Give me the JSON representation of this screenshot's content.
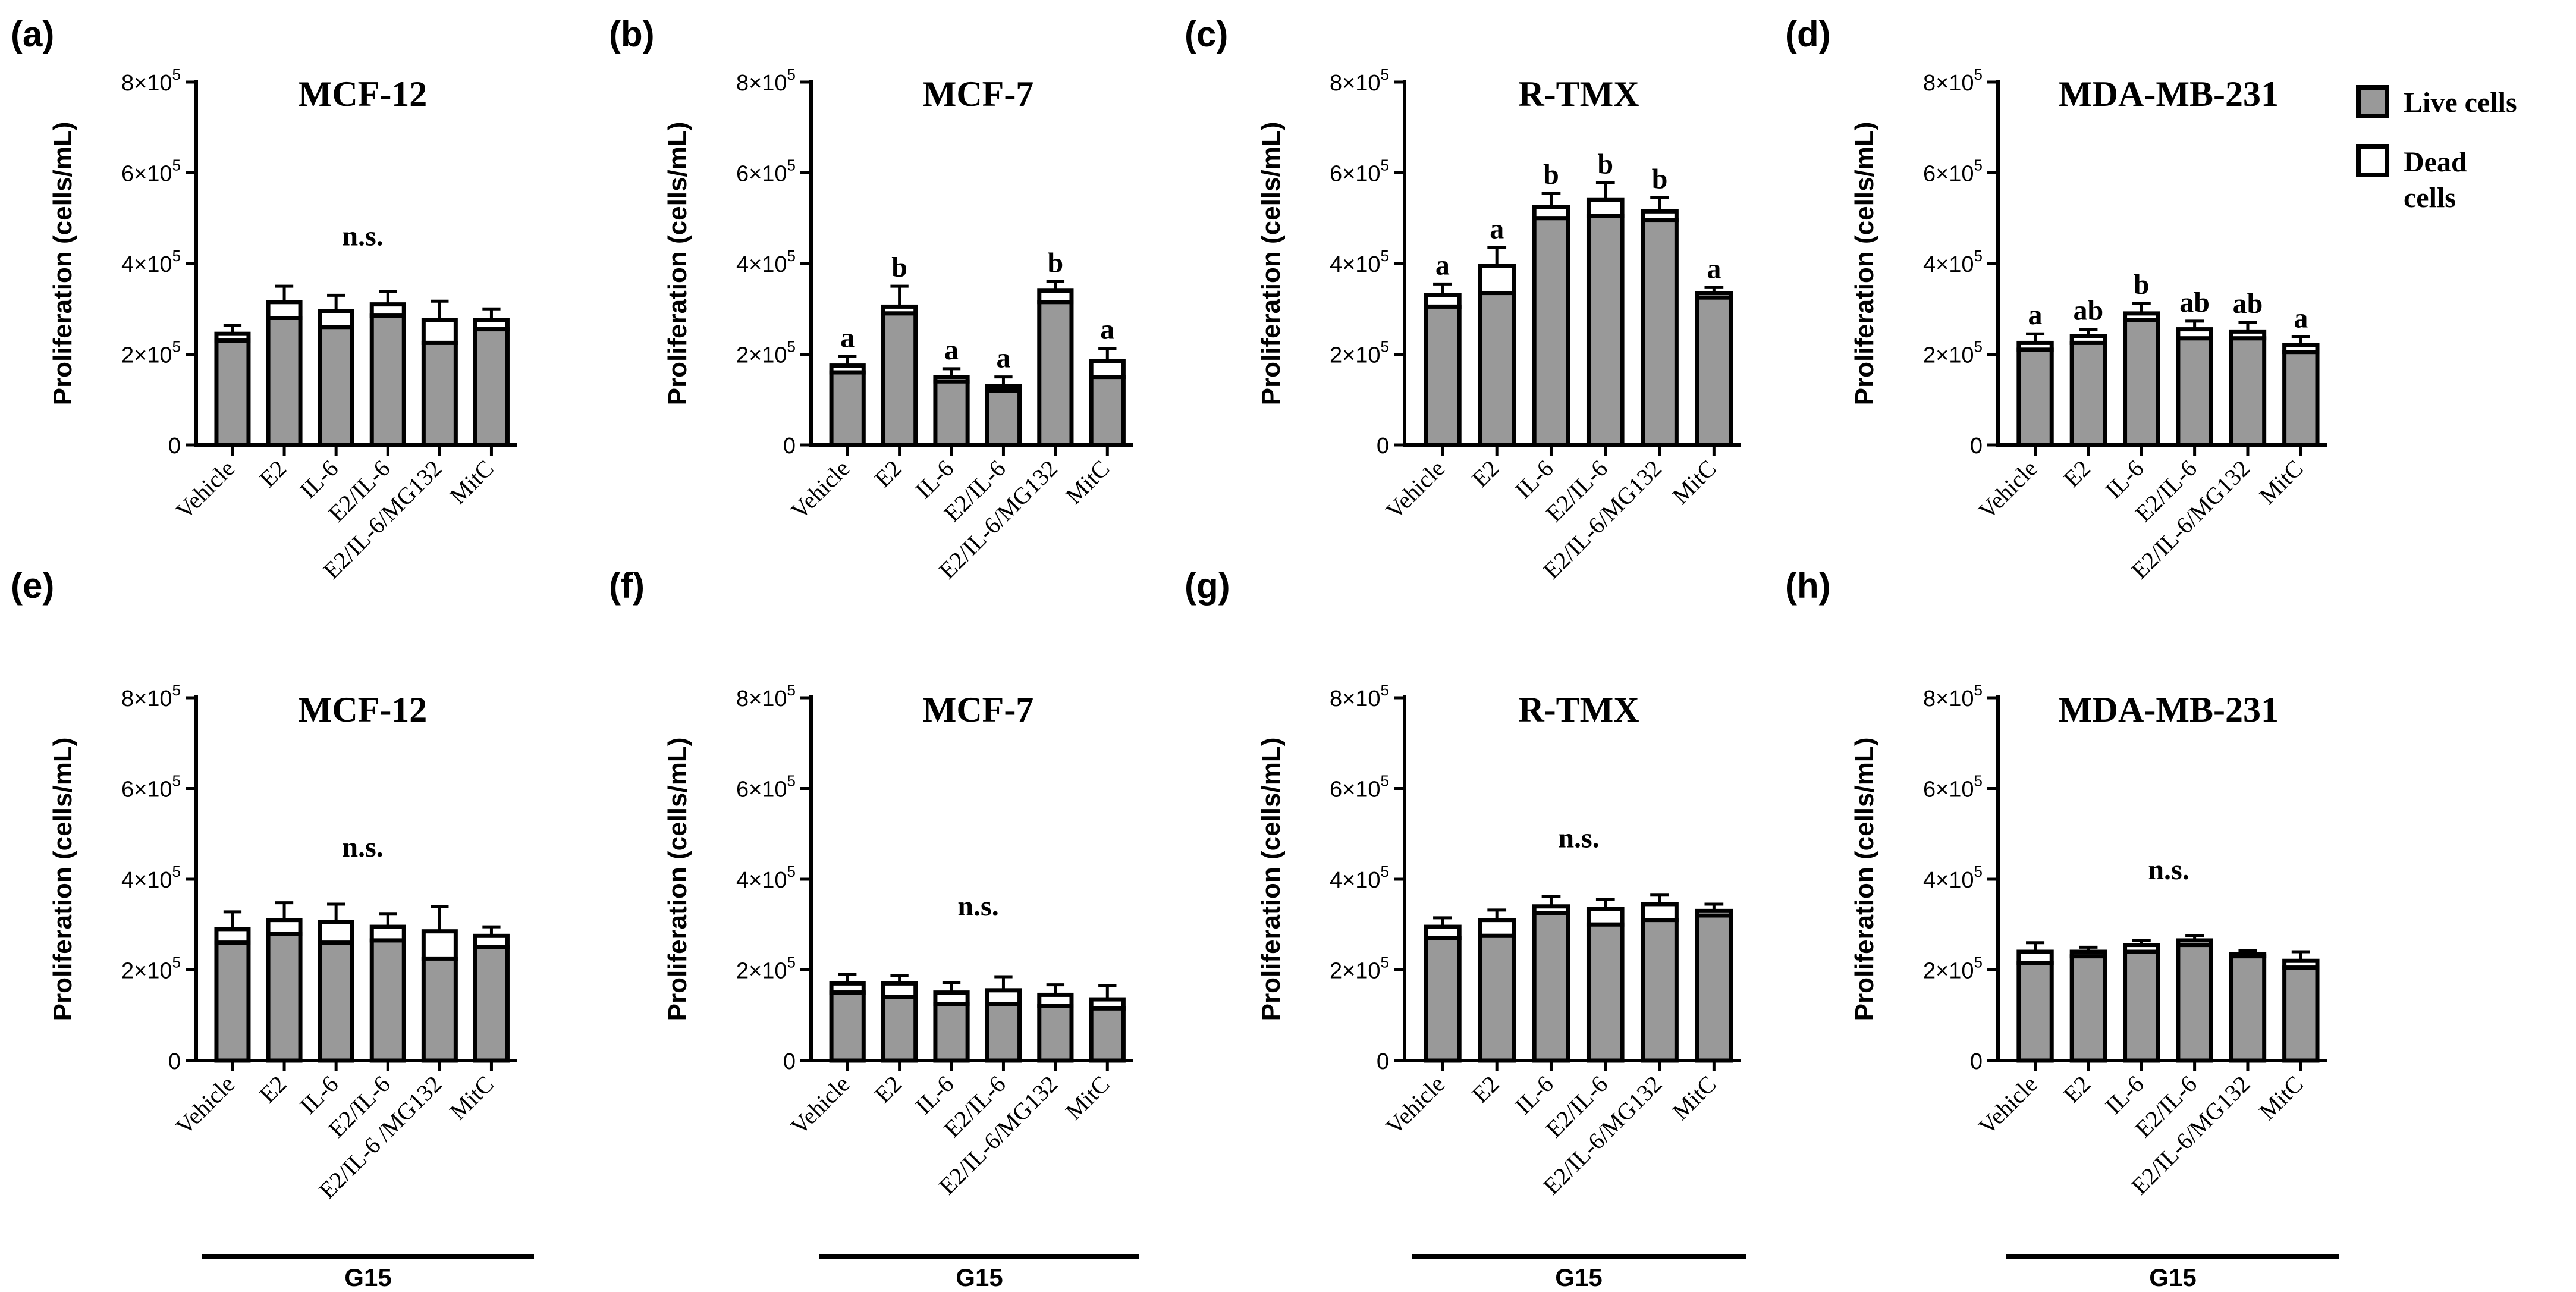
{
  "legend": {
    "items": [
      {
        "label": "Live cells",
        "color": "#999999"
      },
      {
        "label": "Dead",
        "label2": "cells",
        "color": "#ffffff"
      }
    ]
  },
  "colors": {
    "live": "#999999",
    "dead": "#ffffff",
    "stroke": "#000000"
  },
  "chart_data": [
    {
      "panel": "(a)",
      "type": "bar",
      "stacked": true,
      "title": "MCF-12",
      "ylabel": "Proliferation (cells/mL)",
      "yticks": [
        {
          "value": 0,
          "label": "0"
        },
        {
          "value": 200000,
          "label": "2×10",
          "exp": "5"
        },
        {
          "value": 400000,
          "label": "4×10",
          "exp": "5"
        },
        {
          "value": 600000,
          "label": "6×10",
          "exp": "5"
        },
        {
          "value": 800000,
          "label": "8×10",
          "exp": "5"
        }
      ],
      "ylim": [
        0,
        800000
      ],
      "categories": [
        "Vehicle",
        "E2",
        "IL-6",
        "E2/IL-6",
        "E2/IL-6/MG132",
        "MitC"
      ],
      "series": [
        {
          "name": "Live cells",
          "values": [
            230000,
            280000,
            260000,
            285000,
            225000,
            255000
          ]
        },
        {
          "name": "Dead cells",
          "values": [
            15000,
            35000,
            35000,
            25000,
            50000,
            20000
          ]
        }
      ],
      "errors": [
        18000,
        35000,
        35000,
        28000,
        42000,
        25000
      ],
      "letters": [],
      "annotation": "n.s.",
      "annotation_value": 440000,
      "g15": ""
    },
    {
      "panel": "(b)",
      "type": "bar",
      "stacked": true,
      "title": "MCF-7",
      "ylabel": "Proliferation (cells/mL)",
      "yticks": [
        {
          "value": 0,
          "label": "0"
        },
        {
          "value": 200000,
          "label": "2×10",
          "exp": "5"
        },
        {
          "value": 400000,
          "label": "4×10",
          "exp": "5"
        },
        {
          "value": 600000,
          "label": "6×10",
          "exp": "5"
        },
        {
          "value": 800000,
          "label": "8×10",
          "exp": "5"
        }
      ],
      "ylim": [
        0,
        800000
      ],
      "categories": [
        "Vehicle",
        "E2",
        "IL-6",
        "E2/IL-6",
        "E2/IL-6/MG132",
        "MitC"
      ],
      "series": [
        {
          "name": "Live cells",
          "values": [
            160000,
            290000,
            140000,
            120000,
            315000,
            150000
          ]
        },
        {
          "name": "Dead cells",
          "values": [
            15000,
            15000,
            10000,
            10000,
            25000,
            35000
          ]
        }
      ],
      "errors": [
        20000,
        45000,
        18000,
        20000,
        20000,
        28000
      ],
      "letters": [
        "a",
        "b",
        "a",
        "a",
        "b",
        "a"
      ],
      "annotation": "",
      "annotation_value": 0,
      "g15": ""
    },
    {
      "panel": "(c)",
      "type": "bar",
      "stacked": true,
      "title": "R-TMX",
      "ylabel": "Proliferation (cells/mL)",
      "yticks": [
        {
          "value": 0,
          "label": "0"
        },
        {
          "value": 200000,
          "label": "2×10",
          "exp": "5"
        },
        {
          "value": 400000,
          "label": "4×10",
          "exp": "5"
        },
        {
          "value": 600000,
          "label": "6×10",
          "exp": "5"
        },
        {
          "value": 800000,
          "label": "8×10",
          "exp": "5"
        }
      ],
      "ylim": [
        0,
        800000
      ],
      "categories": [
        "Vehicle",
        "E2",
        "IL-6",
        "E2/IL-6",
        "E2/IL-6/MG132",
        "MitC"
      ],
      "series": [
        {
          "name": "Live cells",
          "values": [
            305000,
            335000,
            500000,
            505000,
            495000,
            325000
          ]
        },
        {
          "name": "Dead cells",
          "values": [
            25000,
            60000,
            25000,
            35000,
            20000,
            10000
          ]
        }
      ],
      "errors": [
        25000,
        40000,
        30000,
        38000,
        30000,
        12000
      ],
      "letters": [
        "a",
        "a",
        "b",
        "b",
        "b",
        "a"
      ],
      "annotation": "",
      "annotation_value": 0,
      "g15": ""
    },
    {
      "panel": "(d)",
      "type": "bar",
      "stacked": true,
      "title": "MDA-MB-231",
      "ylabel": "Proliferation (cells/mL)",
      "yticks": [
        {
          "value": 0,
          "label": "0"
        },
        {
          "value": 200000,
          "label": "2×10",
          "exp": "5"
        },
        {
          "value": 400000,
          "label": "4×10",
          "exp": "5"
        },
        {
          "value": 600000,
          "label": "6×10",
          "exp": "5"
        },
        {
          "value": 800000,
          "label": "8×10",
          "exp": "5"
        }
      ],
      "ylim": [
        0,
        800000
      ],
      "categories": [
        "Vehicle",
        "E2",
        "IL-6",
        "E2/IL-6",
        "E2/IL-6/MG132",
        "MitC"
      ],
      "series": [
        {
          "name": "Live cells",
          "values": [
            210000,
            225000,
            275000,
            235000,
            235000,
            205000
          ]
        },
        {
          "name": "Dead cells",
          "values": [
            15000,
            15000,
            15000,
            20000,
            15000,
            15000
          ]
        }
      ],
      "errors": [
        20000,
        15000,
        22000,
        18000,
        20000,
        18000
      ],
      "letters": [
        "a",
        "ab",
        "b",
        "ab",
        "ab",
        "a"
      ],
      "annotation": "",
      "annotation_value": 0,
      "g15": ""
    },
    {
      "panel": "(e)",
      "type": "bar",
      "stacked": true,
      "title": "MCF-12",
      "ylabel": "Proliferation (cells/mL)",
      "yticks": [
        {
          "value": 0,
          "label": "0"
        },
        {
          "value": 200000,
          "label": "2×10",
          "exp": "5"
        },
        {
          "value": 400000,
          "label": "4×10",
          "exp": "5"
        },
        {
          "value": 600000,
          "label": "6×10",
          "exp": "5"
        },
        {
          "value": 800000,
          "label": "8×10",
          "exp": "5"
        }
      ],
      "ylim": [
        0,
        800000
      ],
      "categories": [
        "Vehicle",
        "E2",
        "IL-6",
        "E2/IL-6",
        "E2/IL-6 /MG132",
        "MitC"
      ],
      "series": [
        {
          "name": "Live cells",
          "values": [
            260000,
            280000,
            260000,
            265000,
            225000,
            250000
          ]
        },
        {
          "name": "Dead cells",
          "values": [
            30000,
            30000,
            45000,
            30000,
            60000,
            25000
          ]
        }
      ],
      "errors": [
        38000,
        38000,
        40000,
        28000,
        55000,
        20000
      ],
      "letters": [],
      "annotation": "n.s.",
      "annotation_value": 450000,
      "g15": "G15"
    },
    {
      "panel": "(f)",
      "type": "bar",
      "stacked": true,
      "title": "MCF-7",
      "ylabel": "Proliferation (cells/mL)",
      "yticks": [
        {
          "value": 0,
          "label": "0"
        },
        {
          "value": 200000,
          "label": "2×10",
          "exp": "5"
        },
        {
          "value": 400000,
          "label": "4×10",
          "exp": "5"
        },
        {
          "value": 600000,
          "label": "6×10",
          "exp": "5"
        },
        {
          "value": 800000,
          "label": "8×10",
          "exp": "5"
        }
      ],
      "ylim": [
        0,
        800000
      ],
      "categories": [
        "Vehicle",
        "E2",
        "IL-6",
        "E2/IL-6",
        "E2/IL-6/MG132",
        "MitC"
      ],
      "series": [
        {
          "name": "Live cells",
          "values": [
            150000,
            140000,
            125000,
            125000,
            120000,
            115000
          ]
        },
        {
          "name": "Dead cells",
          "values": [
            20000,
            30000,
            25000,
            30000,
            25000,
            20000
          ]
        }
      ],
      "errors": [
        20000,
        18000,
        22000,
        30000,
        22000,
        30000
      ],
      "letters": [],
      "annotation": "n.s.",
      "annotation_value": 320000,
      "g15": "G15"
    },
    {
      "panel": "(g)",
      "type": "bar",
      "stacked": true,
      "title": "R-TMX",
      "ylabel": "Proliferation (cells/mL)",
      "yticks": [
        {
          "value": 0,
          "label": "0"
        },
        {
          "value": 200000,
          "label": "2×10",
          "exp": "5"
        },
        {
          "value": 400000,
          "label": "4×10",
          "exp": "5"
        },
        {
          "value": 600000,
          "label": "6×10",
          "exp": "5"
        },
        {
          "value": 800000,
          "label": "8×10",
          "exp": "5"
        }
      ],
      "ylim": [
        0,
        800000
      ],
      "categories": [
        "Vehicle",
        "E2",
        "IL-6",
        "E2/IL-6",
        "E2/IL-6/MG132",
        "MitC"
      ],
      "series": [
        {
          "name": "Live cells",
          "values": [
            270000,
            275000,
            325000,
            300000,
            310000,
            320000
          ]
        },
        {
          "name": "Dead cells",
          "values": [
            25000,
            35000,
            15000,
            35000,
            35000,
            10000
          ]
        }
      ],
      "errors": [
        20000,
        22000,
        22000,
        20000,
        20000,
        15000
      ],
      "letters": [],
      "annotation": "n.s.",
      "annotation_value": 470000,
      "g15": "G15"
    },
    {
      "panel": "(h)",
      "type": "bar",
      "stacked": true,
      "title": "MDA-MB-231",
      "ylabel": "Proliferation (cells/mL)",
      "yticks": [
        {
          "value": 0,
          "label": "0"
        },
        {
          "value": 200000,
          "label": "2×10",
          "exp": "5"
        },
        {
          "value": 400000,
          "label": "4×10",
          "exp": "5"
        },
        {
          "value": 600000,
          "label": "6×10",
          "exp": "5"
        },
        {
          "value": 800000,
          "label": "8×10",
          "exp": "5"
        }
      ],
      "ylim": [
        0,
        800000
      ],
      "categories": [
        "Vehicle",
        "E2",
        "IL-6",
        "E2/IL-6",
        "E2/IL-6/MG132",
        "MitC"
      ],
      "series": [
        {
          "name": "Live cells",
          "values": [
            215000,
            230000,
            240000,
            255000,
            230000,
            205000
          ]
        },
        {
          "name": "Dead cells",
          "values": [
            25000,
            10000,
            15000,
            10000,
            5000,
            15000
          ]
        }
      ],
      "errors": [
        20000,
        10000,
        10000,
        10000,
        8000,
        20000
      ],
      "letters": [],
      "annotation": "n.s.",
      "annotation_value": 400000,
      "g15": "G15"
    }
  ]
}
